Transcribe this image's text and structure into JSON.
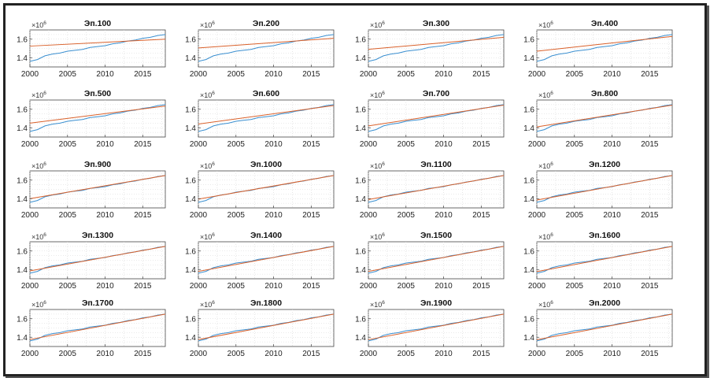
{
  "colors": {
    "data_series": "#3a8fd0",
    "fit_series": "#d9602a",
    "axis": "#444444",
    "grid": "#d6d6d6"
  },
  "chart_data": {
    "type": "line",
    "layout": "5x4 grid of small multiples",
    "grid": true,
    "xlim": [
      2000,
      2018
    ],
    "ylim": [
      1.3,
      1.7
    ],
    "xticks": [
      "2000",
      "2005",
      "2010",
      "2015"
    ],
    "yticks": [
      "1.4",
      "1.6"
    ],
    "y_multiplier": "10",
    "y_multiplier_exp": "6",
    "x": [
      2000,
      2001,
      2002,
      2003,
      2004,
      2005,
      2006,
      2007,
      2008,
      2009,
      2010,
      2011,
      2012,
      2013,
      2014,
      2015,
      2016,
      2017,
      2018
    ],
    "observed": [
      1.36,
      1.38,
      1.42,
      1.44,
      1.45,
      1.47,
      1.48,
      1.49,
      1.51,
      1.52,
      1.53,
      1.55,
      1.56,
      1.58,
      1.59,
      1.61,
      1.62,
      1.64,
      1.65
    ],
    "panels": [
      {
        "title": "Эп.100",
        "fit_start": 1.525,
        "fit_end": 1.6
      },
      {
        "title": "Эп.200",
        "fit_start": 1.505,
        "fit_end": 1.61
      },
      {
        "title": "Эп.300",
        "fit_start": 1.49,
        "fit_end": 1.62
      },
      {
        "title": "Эп.400",
        "fit_start": 1.47,
        "fit_end": 1.63
      },
      {
        "title": "Эп.500",
        "fit_start": 1.45,
        "fit_end": 1.635
      },
      {
        "title": "Эп.600",
        "fit_start": 1.44,
        "fit_end": 1.64
      },
      {
        "title": "Эп.700",
        "fit_start": 1.42,
        "fit_end": 1.645
      },
      {
        "title": "Эп.800",
        "fit_start": 1.41,
        "fit_end": 1.645
      },
      {
        "title": "Эп.900",
        "fit_start": 1.4,
        "fit_end": 1.65
      },
      {
        "title": "Эп.1000",
        "fit_start": 1.395,
        "fit_end": 1.65
      },
      {
        "title": "Эп.1100",
        "fit_start": 1.39,
        "fit_end": 1.65
      },
      {
        "title": "Эп.1200",
        "fit_start": 1.385,
        "fit_end": 1.65
      },
      {
        "title": "Эп.1300",
        "fit_start": 1.385,
        "fit_end": 1.65
      },
      {
        "title": "Эп.1400",
        "fit_start": 1.38,
        "fit_end": 1.65
      },
      {
        "title": "Эп.1500",
        "fit_start": 1.38,
        "fit_end": 1.65
      },
      {
        "title": "Эп.1600",
        "fit_start": 1.378,
        "fit_end": 1.65
      },
      {
        "title": "Эп.1700",
        "fit_start": 1.376,
        "fit_end": 1.65
      },
      {
        "title": "Эп.1800",
        "fit_start": 1.375,
        "fit_end": 1.65
      },
      {
        "title": "Эп.1900",
        "fit_start": 1.374,
        "fit_end": 1.65
      },
      {
        "title": "Эп.2000",
        "fit_start": 1.373,
        "fit_end": 1.65
      }
    ]
  }
}
